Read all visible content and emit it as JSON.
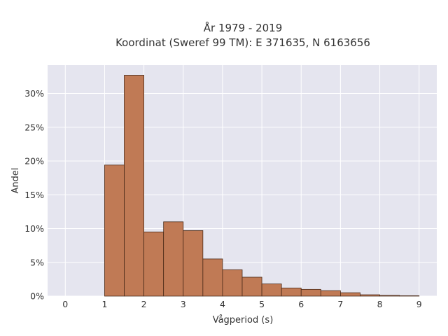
{
  "chart_data": {
    "type": "bar",
    "title_lines": [
      "År 1979 - 2019",
      "Koordinat (Sweref 99 TM): E 371635, N 6163656"
    ],
    "xlabel": "Vågperiod (s)",
    "ylabel": "Andel",
    "bin_width": 0.5,
    "bin_starts": [
      1.0,
      1.5,
      2.0,
      2.5,
      3.0,
      3.5,
      4.0,
      4.5,
      5.0,
      5.5,
      6.0,
      6.5,
      7.0,
      7.5,
      8.0,
      8.5
    ],
    "values": [
      19.4,
      32.7,
      9.5,
      11.0,
      9.7,
      5.5,
      3.9,
      2.8,
      1.8,
      1.2,
      1.0,
      0.8,
      0.5,
      0.2,
      0.1,
      0.05
    ],
    "xlim": [
      -0.45,
      9.45
    ],
    "ylim": [
      0,
      34.2
    ],
    "xticks": [
      0,
      1,
      2,
      3,
      4,
      5,
      6,
      7,
      8,
      9
    ],
    "yticks": [
      0,
      5,
      10,
      15,
      20,
      25,
      30
    ],
    "ytick_suffix": "%",
    "grid": true,
    "colors": {
      "bar_fill": "#c07a55",
      "bar_stroke": "#4a2a18",
      "plot_bg": "#e5e5ef",
      "grid": "#ffffff"
    }
  }
}
